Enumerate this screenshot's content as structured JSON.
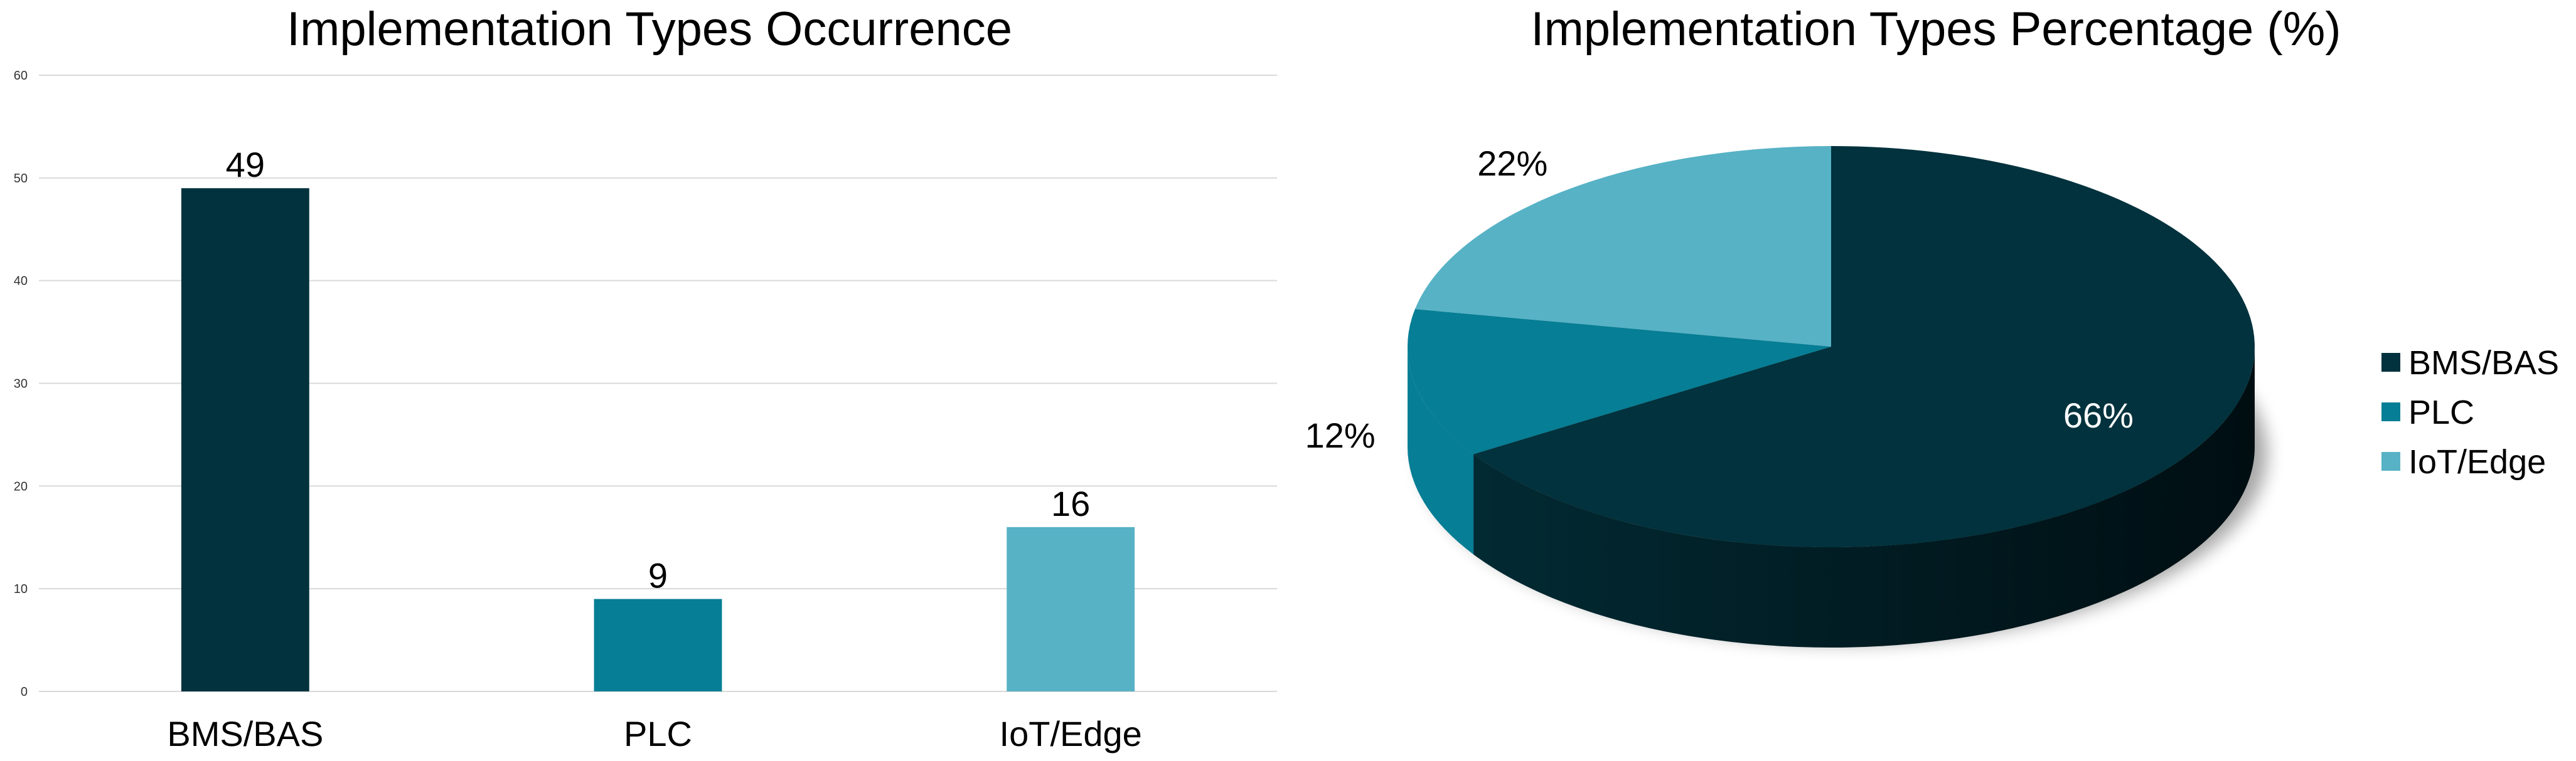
{
  "colors": {
    "BMS/BAS": "#01323D",
    "PLC": "#067E95",
    "IoT/Edge": "#57B2C5",
    "grid": "#D9D9D9",
    "pie_side_light": "#022A33",
    "pie_side_dark": "#000E12"
  },
  "chart_data": [
    {
      "type": "bar",
      "title": "Implementation Types Occurrence",
      "categories": [
        "BMS/BAS",
        "PLC",
        "IoT/Edge"
      ],
      "values": [
        49,
        9,
        16
      ],
      "value_labels": [
        "49",
        "9",
        "16"
      ],
      "ylim": [
        0,
        60
      ],
      "yticks": [
        0,
        10,
        20,
        30,
        40,
        50,
        60
      ],
      "ytick_labels": [
        "0",
        "10",
        "20",
        "30",
        "40",
        "50",
        "60"
      ],
      "grid": true,
      "legend": "none"
    },
    {
      "type": "pie",
      "style": "3d",
      "title": "Implementation Types Percentage (%)",
      "labels": [
        "BMS/BAS",
        "PLC",
        "IoT/Edge"
      ],
      "values": [
        66,
        12,
        22
      ],
      "value_labels": [
        "66%",
        "12%",
        "22%"
      ],
      "legend": "right",
      "legend_entries": [
        "BMS/BAS",
        "PLC",
        "IoT/Edge"
      ]
    }
  ]
}
